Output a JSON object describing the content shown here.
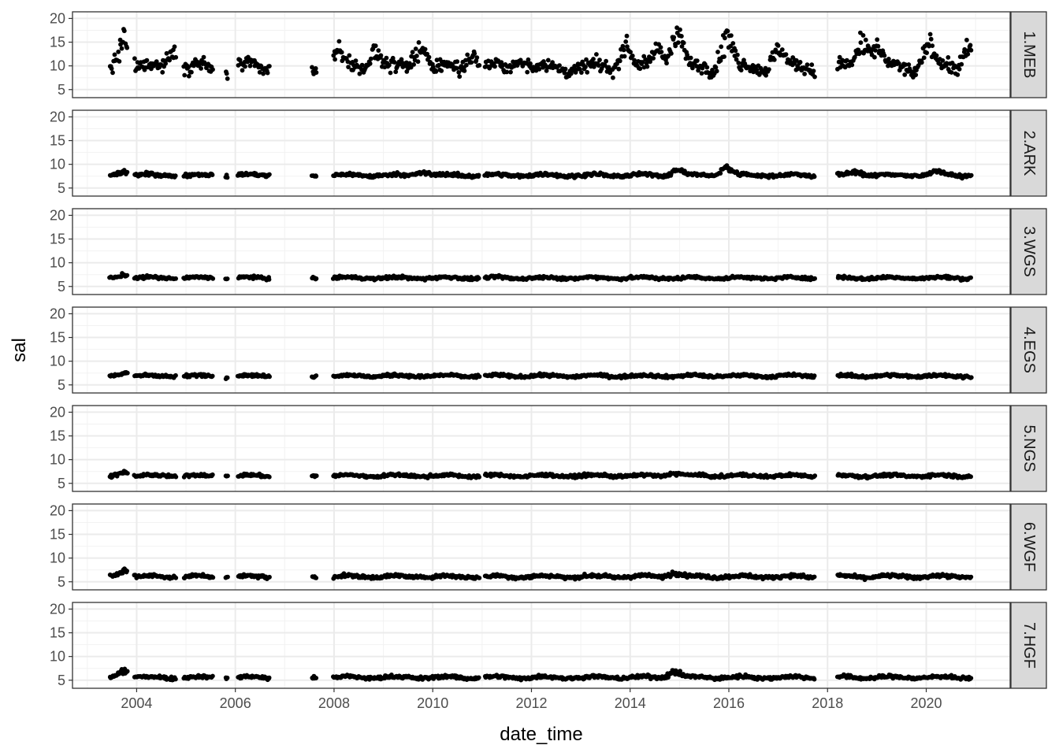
{
  "chart_data": {
    "type": "scatter",
    "layout": "faceted-rows",
    "xlabel": "date_time",
    "ylabel": "sal",
    "xlim": [
      2002.7,
      2021.7
    ],
    "ylim": [
      3.3,
      21.4
    ],
    "x_ticks": [
      2004,
      2006,
      2008,
      2010,
      2012,
      2014,
      2016,
      2018,
      2020
    ],
    "y_ticks": [
      5,
      10,
      15,
      20
    ],
    "grid": true,
    "theme": "bw",
    "point_color": "#000000",
    "sampling_periods": [
      [
        2003.45,
        2003.82
      ],
      [
        2003.95,
        2004.8
      ],
      [
        2004.95,
        2005.55
      ],
      [
        2005.8,
        2005.85
      ],
      [
        2006.05,
        2006.7
      ],
      [
        2007.55,
        2007.65
      ],
      [
        2007.98,
        2010.95
      ],
      [
        2011.05,
        2017.75
      ],
      [
        2018.2,
        2020.92
      ]
    ],
    "facets": [
      {
        "strip": "1.MEB",
        "baseline": 9.6,
        "variability": 1.4,
        "peaks": [
          [
            2003.75,
            19.0
          ],
          [
            2004.75,
            16.5
          ],
          [
            2008.05,
            15.0
          ],
          [
            2008.85,
            15.5
          ],
          [
            2009.75,
            17.0
          ],
          [
            2010.8,
            14.5
          ],
          [
            2011.8,
            12.5
          ],
          [
            2013.9,
            17.0
          ],
          [
            2014.6,
            16.0
          ],
          [
            2014.95,
            20.5
          ],
          [
            2015.95,
            19.5
          ],
          [
            2017.0,
            15.5
          ],
          [
            2018.7,
            18.5
          ],
          [
            2019.0,
            15.5
          ],
          [
            2020.05,
            17.0
          ],
          [
            2020.85,
            16.5
          ]
        ]
      },
      {
        "strip": "2.ARK",
        "baseline": 7.7,
        "variability": 0.35,
        "peaks": [
          [
            2003.75,
            9.0
          ],
          [
            2009.8,
            8.8
          ],
          [
            2014.95,
            9.5
          ],
          [
            2015.95,
            10.0
          ],
          [
            2018.6,
            9.0
          ],
          [
            2020.2,
            8.8
          ]
        ]
      },
      {
        "strip": "3.WGS",
        "baseline": 6.8,
        "variability": 0.3,
        "peaks": [
          [
            2003.75,
            8.0
          ]
        ]
      },
      {
        "strip": "4.EGS",
        "baseline": 6.9,
        "variability": 0.3,
        "peaks": [
          [
            2003.75,
            8.0
          ]
        ]
      },
      {
        "strip": "5.NGS",
        "baseline": 6.6,
        "variability": 0.3,
        "peaks": [
          [
            2003.75,
            7.8
          ],
          [
            2014.9,
            7.6
          ]
        ]
      },
      {
        "strip": "6.WGF",
        "baseline": 6.1,
        "variability": 0.35,
        "peaks": [
          [
            2003.75,
            8.0
          ],
          [
            2014.9,
            7.6
          ]
        ]
      },
      {
        "strip": "7.HGF",
        "baseline": 5.6,
        "variability": 0.35,
        "peaks": [
          [
            2003.75,
            8.0
          ],
          [
            2014.9,
            7.6
          ]
        ]
      }
    ]
  }
}
